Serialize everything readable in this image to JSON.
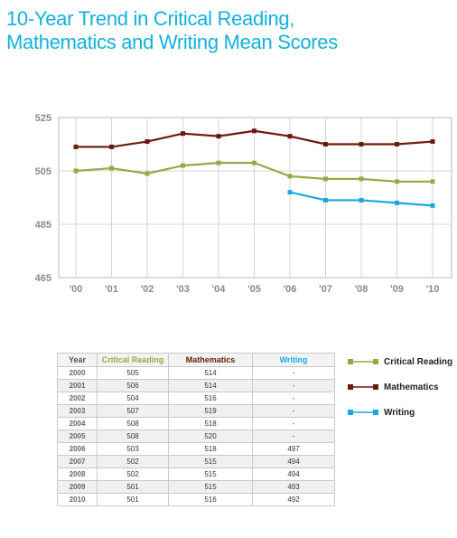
{
  "title_line1": "10-Year Trend in Critical Reading,",
  "title_line2": "Mathematics and Writing Mean Scores",
  "colors": {
    "title": "#12b0de",
    "reading": "#9aa844",
    "math": "#6b1a0c",
    "writing": "#19a9e1"
  },
  "chart_data": {
    "type": "line",
    "x": [
      "'00",
      "'01",
      "'02",
      "'03",
      "'04",
      "'05",
      "'06",
      "'07",
      "'08",
      "'09",
      "'10"
    ],
    "yticks": [
      465,
      485,
      505,
      525
    ],
    "ylim": [
      465,
      525
    ],
    "grid": true,
    "series": [
      {
        "name": "Critical Reading",
        "values": [
          505,
          506,
          504,
          507,
          508,
          508,
          503,
          502,
          502,
          501,
          501
        ]
      },
      {
        "name": "Mathematics",
        "values": [
          514,
          514,
          516,
          519,
          518,
          520,
          518,
          515,
          515,
          515,
          516
        ]
      },
      {
        "name": "Writing",
        "values": [
          null,
          null,
          null,
          null,
          null,
          null,
          497,
          494,
          494,
          493,
          492
        ]
      }
    ]
  },
  "table": {
    "headers": [
      "Year",
      "Critical Reading",
      "Mathematics",
      "Writing"
    ],
    "rows": [
      [
        "2000",
        "505",
        "514",
        "-"
      ],
      [
        "2001",
        "506",
        "514",
        "-"
      ],
      [
        "2002",
        "504",
        "516",
        "-"
      ],
      [
        "2003",
        "507",
        "519",
        "-"
      ],
      [
        "2004",
        "508",
        "518",
        "-"
      ],
      [
        "2005",
        "508",
        "520",
        "-"
      ],
      [
        "2006",
        "503",
        "518",
        "497"
      ],
      [
        "2007",
        "502",
        "515",
        "494"
      ],
      [
        "2008",
        "502",
        "515",
        "494"
      ],
      [
        "2009",
        "501",
        "515",
        "493"
      ],
      [
        "2010",
        "501",
        "516",
        "492"
      ]
    ]
  },
  "legend": [
    "Critical Reading",
    "Mathematics",
    "Writing"
  ]
}
